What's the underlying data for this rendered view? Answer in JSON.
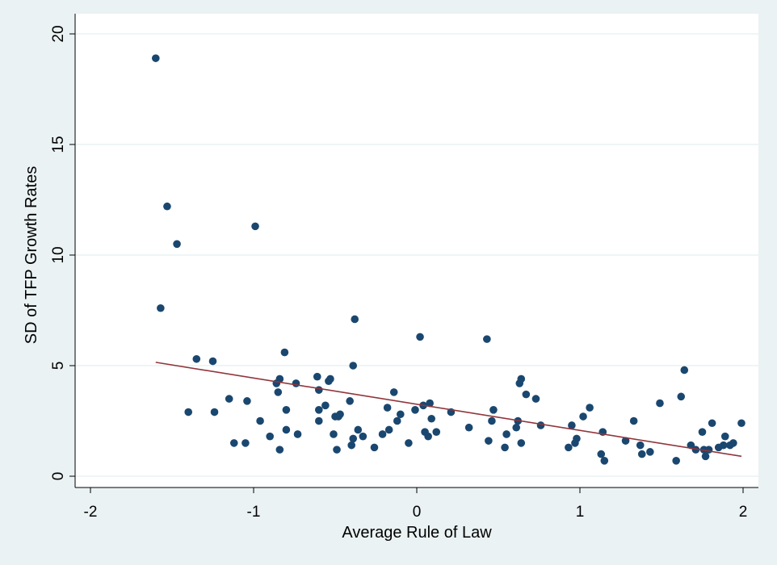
{
  "chart_data": {
    "type": "scatter",
    "title": "",
    "xlabel": "Average Rule of Law",
    "ylabel": "SD of TFP Growth Rates",
    "xlim": [
      -2,
      2
    ],
    "ylim": [
      0,
      20
    ],
    "xticks": [
      -2,
      -1,
      0,
      1,
      2
    ],
    "yticks": [
      0,
      5,
      10,
      15,
      20
    ],
    "grid": "horizontal",
    "legend": "none",
    "colors": {
      "background": "#eaf2f3",
      "plot_bg": "#ffffff",
      "marker": "#1a476f",
      "fit_line": "#90353b",
      "grid": "#eaf2f3"
    },
    "series": [
      {
        "kind": "points",
        "x": [
          -1.6,
          -1.57,
          -1.53,
          -1.47,
          -1.4,
          -1.35,
          -1.25,
          -1.24,
          -1.15,
          -1.12,
          -1.05,
          -1.04,
          -0.99,
          -0.96,
          -0.9,
          -0.86,
          -0.85,
          -0.84,
          -0.84,
          -0.81,
          -0.8,
          -0.8,
          -0.74,
          -0.73,
          -0.61,
          -0.6,
          -0.6,
          -0.6,
          -0.56,
          -0.54,
          -0.53,
          -0.51,
          -0.5,
          -0.49,
          -0.48,
          -0.47,
          -0.41,
          -0.4,
          -0.39,
          -0.39,
          -0.38,
          -0.36,
          -0.33,
          -0.26,
          -0.21,
          -0.18,
          -0.17,
          -0.14,
          -0.12,
          -0.1,
          -0.05,
          -0.01,
          0.02,
          0.04,
          0.05,
          0.07,
          0.08,
          0.09,
          0.12,
          0.21,
          0.32,
          0.43,
          0.44,
          0.46,
          0.47,
          0.54,
          0.55,
          0.61,
          0.62,
          0.63,
          0.64,
          0.64,
          0.67,
          0.73,
          0.76,
          0.93,
          0.95,
          0.97,
          0.98,
          1.02,
          1.06,
          1.13,
          1.14,
          1.15,
          1.28,
          1.33,
          1.37,
          1.38,
          1.43,
          1.49,
          1.59,
          1.62,
          1.64,
          1.68,
          1.71,
          1.75,
          1.76,
          1.77,
          1.79,
          1.81,
          1.85,
          1.88,
          1.89,
          1.92,
          1.94,
          1.99
        ],
        "y": [
          18.9,
          7.6,
          12.2,
          10.5,
          2.9,
          5.3,
          5.2,
          2.9,
          3.5,
          1.5,
          1.5,
          3.4,
          11.3,
          2.5,
          1.8,
          4.2,
          3.8,
          4.4,
          1.2,
          5.6,
          3.0,
          2.1,
          4.2,
          1.9,
          4.5,
          3.9,
          3.0,
          2.5,
          3.2,
          4.3,
          4.4,
          1.9,
          2.7,
          1.2,
          2.7,
          2.8,
          3.4,
          1.4,
          1.7,
          5.0,
          7.1,
          2.1,
          1.8,
          1.3,
          1.9,
          3.1,
          2.1,
          3.8,
          2.5,
          2.8,
          1.5,
          3.0,
          6.3,
          3.2,
          2.0,
          1.8,
          3.3,
          2.6,
          2.0,
          2.9,
          2.2,
          6.2,
          1.6,
          2.5,
          3.0,
          1.3,
          1.9,
          2.2,
          2.5,
          4.2,
          4.4,
          1.5,
          3.7,
          3.5,
          2.3,
          1.3,
          2.3,
          1.5,
          1.7,
          2.7,
          3.1,
          1.0,
          2.0,
          0.7,
          1.6,
          2.5,
          1.4,
          1.0,
          1.1,
          3.3,
          0.7,
          3.6,
          4.8,
          1.4,
          1.2,
          2.0,
          1.2,
          0.9,
          1.2,
          2.4,
          1.3,
          1.4,
          1.8,
          1.4,
          1.5,
          2.4
        ]
      },
      {
        "kind": "fit-line",
        "x": [
          -1.6,
          1.99
        ],
        "y": [
          5.15,
          0.9
        ]
      }
    ]
  }
}
